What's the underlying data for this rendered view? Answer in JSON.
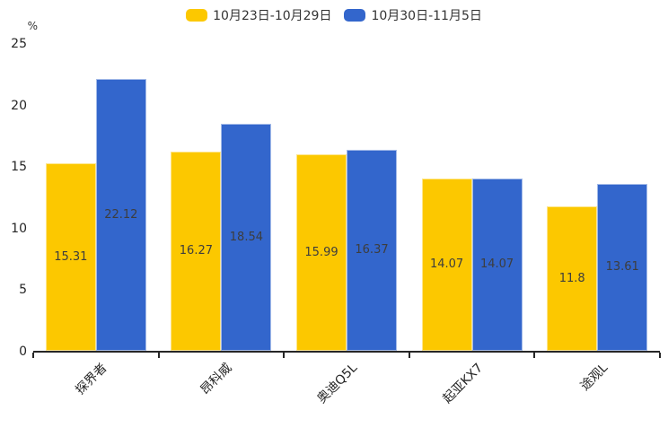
{
  "chart": {
    "unit_label": "%",
    "background_color": "#ffffff",
    "axis_color": "#262626",
    "text_color": "#333333",
    "bar_label_color": "#3d3d3d"
  },
  "chart_data": {
    "type": "bar",
    "title": "",
    "xlabel": "",
    "ylabel": "%",
    "ylim": [
      0,
      25
    ],
    "yticks": [
      0,
      5,
      10,
      15,
      20,
      25
    ],
    "grid": false,
    "legend_position": "top",
    "bar_value_labels": "centered-inside",
    "categories": [
      "探界者",
      "昂科威",
      "奥迪Q5L",
      "起亚KX7",
      "途观L"
    ],
    "series": [
      {
        "name": "10月23日-10月29日",
        "color": "#FCC800",
        "values": [
          15.31,
          16.27,
          15.99,
          14.07,
          11.8
        ]
      },
      {
        "name": "10月30日-11月5日",
        "color": "#3366CC",
        "values": [
          22.12,
          18.54,
          16.37,
          14.07,
          13.61
        ]
      }
    ]
  }
}
